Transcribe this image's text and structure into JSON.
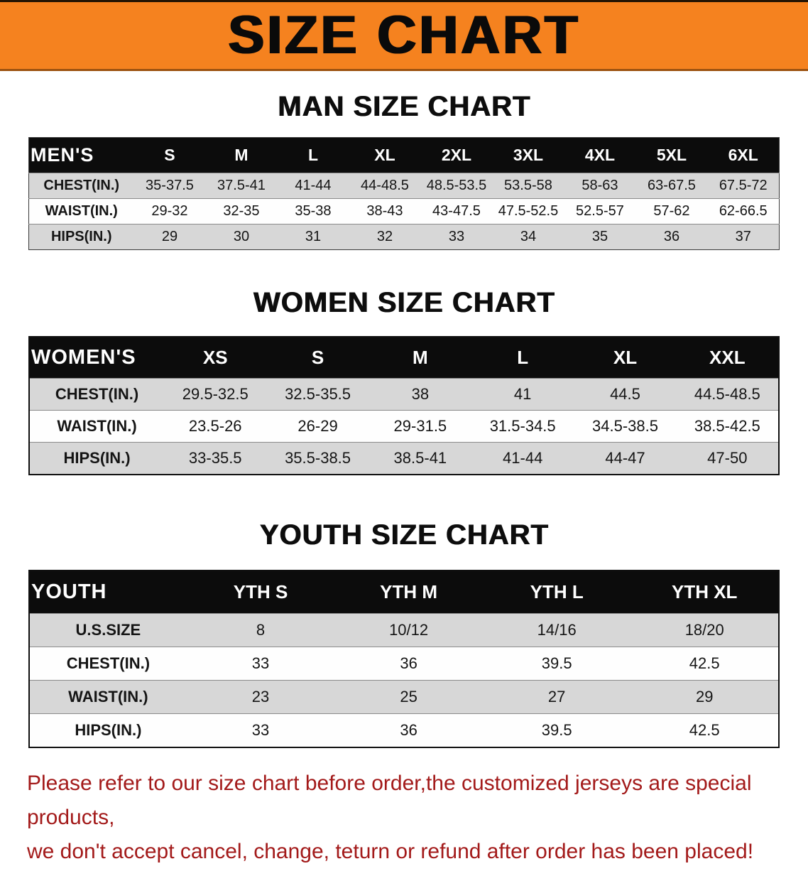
{
  "banner": {
    "title": "SIZE CHART",
    "bg_color": "#f5821f",
    "text_color": "#0a0a0a"
  },
  "sections": [
    {
      "heading": "MAN SIZE CHART",
      "table": {
        "header": [
          "MEN'S",
          "S",
          "M",
          "L",
          "XL",
          "2XL",
          "3XL",
          "4XL",
          "5XL",
          "6XL"
        ],
        "rows": [
          [
            "CHEST(IN.)",
            "35-37.5",
            "37.5-41",
            "41-44",
            "44-48.5",
            "48.5-53.5",
            "53.5-58",
            "58-63",
            "63-67.5",
            "67.5-72"
          ],
          [
            "WAIST(IN.)",
            "29-32",
            "32-35",
            "35-38",
            "38-43",
            "43-47.5",
            "47.5-52.5",
            "52.5-57",
            "57-62",
            "62-66.5"
          ],
          [
            "HIPS(IN.)",
            "29",
            "30",
            "31",
            "32",
            "33",
            "34",
            "35",
            "36",
            "37"
          ]
        ]
      }
    },
    {
      "heading": "WOMEN SIZE CHART",
      "table": {
        "header": [
          "WOMEN'S",
          "XS",
          "S",
          "M",
          "L",
          "XL",
          "XXL"
        ],
        "rows": [
          [
            "CHEST(IN.)",
            "29.5-32.5",
            "32.5-35.5",
            "38",
            "41",
            "44.5",
            "44.5-48.5"
          ],
          [
            "WAIST(IN.)",
            "23.5-26",
            "26-29",
            "29-31.5",
            "31.5-34.5",
            "34.5-38.5",
            "38.5-42.5"
          ],
          [
            "HIPS(IN.)",
            "33-35.5",
            "35.5-38.5",
            "38.5-41",
            "41-44",
            "44-47",
            "47-50"
          ]
        ]
      }
    },
    {
      "heading": "YOUTH SIZE CHART",
      "table": {
        "header": [
          "YOUTH",
          "YTH S",
          "YTH M",
          "YTH L",
          "YTH XL"
        ],
        "rows": [
          [
            "U.S.SIZE",
            "8",
            "10/12",
            "14/16",
            "18/20"
          ],
          [
            "CHEST(IN.)",
            "33",
            "36",
            "39.5",
            "42.5"
          ],
          [
            "WAIST(IN.)",
            "23",
            "25",
            "27",
            "29"
          ],
          [
            "HIPS(IN.)",
            "33",
            "36",
            "39.5",
            "42.5"
          ]
        ]
      }
    }
  ],
  "disclaimer": {
    "line1": "Please refer to our size chart before order,the customized jerseys are special products,",
    "line2": "we don't accept cancel, change, teturn or refund after order has been placed!",
    "text_color": "#a31a1a"
  }
}
